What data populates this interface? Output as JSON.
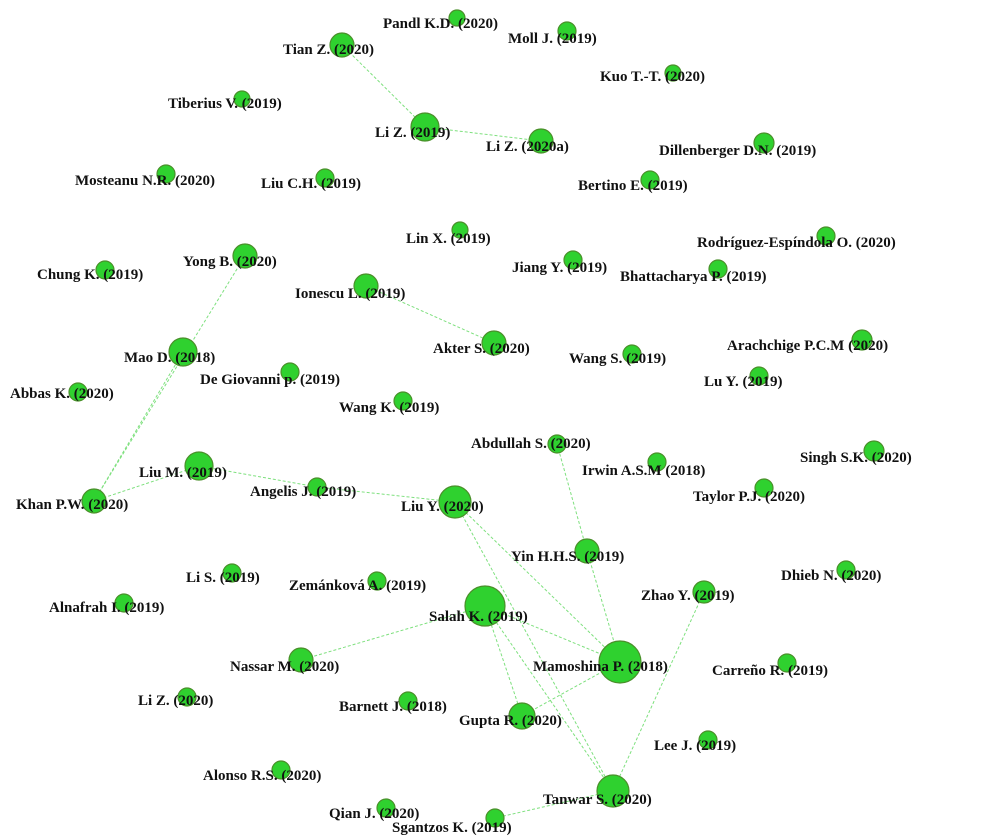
{
  "diagram": {
    "type": "citation-network",
    "colors": {
      "node_fill": "#2fd12f",
      "node_stroke": "#4a8f2a",
      "edge": "#7ee07e",
      "label": "#111111"
    },
    "nodes": [
      {
        "id": "pandl",
        "label": "Pandl K.D. (2020)"
      },
      {
        "id": "moll",
        "label": "Moll J. (2019)"
      },
      {
        "id": "tian",
        "label": "Tian Z. (2020)"
      },
      {
        "id": "kuo",
        "label": "Kuo T.-T. (2020)"
      },
      {
        "id": "tiberius",
        "label": "Tiberius V. (2019)"
      },
      {
        "id": "liz2019",
        "label": "Li Z. (2019)"
      },
      {
        "id": "liz2020a",
        "label": "Li Z. (2020a)"
      },
      {
        "id": "dillenberger",
        "label": "Dillenberger D.N. (2019)"
      },
      {
        "id": "mosteanu",
        "label": "Mosteanu N.R. (2020)"
      },
      {
        "id": "liuch",
        "label": "Liu C.H. (2019)"
      },
      {
        "id": "bertino",
        "label": "Bertino E. (2019)"
      },
      {
        "id": "linx",
        "label": "Lin X. (2019)"
      },
      {
        "id": "rodriguez",
        "label": "Rodríguez-Espíndola O. (2020)"
      },
      {
        "id": "chung",
        "label": "Chung K. (2019)"
      },
      {
        "id": "yong",
        "label": "Yong B. (2020)"
      },
      {
        "id": "jiang",
        "label": "Jiang Y. (2019)"
      },
      {
        "id": "bhattacharya",
        "label": "Bhattacharya P. (2019)"
      },
      {
        "id": "ionescu",
        "label": "Ionescu L. (2019)"
      },
      {
        "id": "arachchige",
        "label": "Arachchige P.C.M (2020)"
      },
      {
        "id": "mao",
        "label": "Mao D. (2018)"
      },
      {
        "id": "akter",
        "label": "Akter S. (2020)"
      },
      {
        "id": "wangs",
        "label": "Wang S. (2019)"
      },
      {
        "id": "abbas",
        "label": "Abbas K. (2020)"
      },
      {
        "id": "degiovanni",
        "label": "De Giovanni p. (2019)"
      },
      {
        "id": "luy",
        "label": "Lu Y. (2019)"
      },
      {
        "id": "wangk",
        "label": "Wang K. (2019)"
      },
      {
        "id": "abdullah",
        "label": "Abdullah S. (2020)"
      },
      {
        "id": "singh",
        "label": "Singh S.K. (2020)"
      },
      {
        "id": "irwin",
        "label": "Irwin A.S.M (2018)"
      },
      {
        "id": "lium",
        "label": "Liu M. (2019)"
      },
      {
        "id": "taylor",
        "label": "Taylor P.J. (2020)"
      },
      {
        "id": "angelis",
        "label": "Angelis J. (2019)"
      },
      {
        "id": "khan",
        "label": "Khan P.W. (2020)"
      },
      {
        "id": "liuy",
        "label": "Liu Y. (2020)"
      },
      {
        "id": "yin",
        "label": "Yin H.H.S. (2019)"
      },
      {
        "id": "dhieb",
        "label": "Dhieb N. (2020)"
      },
      {
        "id": "lis",
        "label": "Li S. (2019)"
      },
      {
        "id": "zemankova",
        "label": "Zemánková A. (2019)"
      },
      {
        "id": "zhao",
        "label": "Zhao Y. (2019)"
      },
      {
        "id": "alnafrah",
        "label": "Alnafrah I. (2019)"
      },
      {
        "id": "salah",
        "label": "Salah K. (2019)"
      },
      {
        "id": "nassar",
        "label": "Nassar M. (2020)"
      },
      {
        "id": "mamoshina",
        "label": "Mamoshina P. (2018)"
      },
      {
        "id": "carreno",
        "label": "Carreño R. (2019)"
      },
      {
        "id": "liz2020",
        "label": "Li Z. (2020)"
      },
      {
        "id": "barnett",
        "label": "Barnett J. (2018)"
      },
      {
        "id": "gupta",
        "label": "Gupta R. (2020)"
      },
      {
        "id": "leej",
        "label": "Lee J. (2019)"
      },
      {
        "id": "alonso",
        "label": "Alonso R.S. (2020)"
      },
      {
        "id": "tanwar",
        "label": "Tanwar S. (2020)"
      },
      {
        "id": "qian",
        "label": "Qian J. (2020)"
      },
      {
        "id": "sgantzos",
        "label": "Sgantzos K. (2019)"
      }
    ],
    "edges": [
      [
        "tian",
        "liz2019"
      ],
      [
        "liz2019",
        "liz2020a"
      ],
      [
        "yong",
        "khan"
      ],
      [
        "mao",
        "khan"
      ],
      [
        "ionescu",
        "akter"
      ],
      [
        "khan",
        "lium"
      ],
      [
        "lium",
        "angelis"
      ],
      [
        "angelis",
        "liuy"
      ],
      [
        "liuy",
        "mamoshina"
      ],
      [
        "liuy",
        "tanwar"
      ],
      [
        "abdullah",
        "yin"
      ],
      [
        "yin",
        "mamoshina"
      ],
      [
        "salah",
        "mamoshina"
      ],
      [
        "salah",
        "gupta"
      ],
      [
        "salah",
        "tanwar"
      ],
      [
        "salah",
        "nassar"
      ],
      [
        "gupta",
        "mamoshina"
      ],
      [
        "zhao",
        "tanwar"
      ],
      [
        "tanwar",
        "sgantzos"
      ]
    ]
  }
}
